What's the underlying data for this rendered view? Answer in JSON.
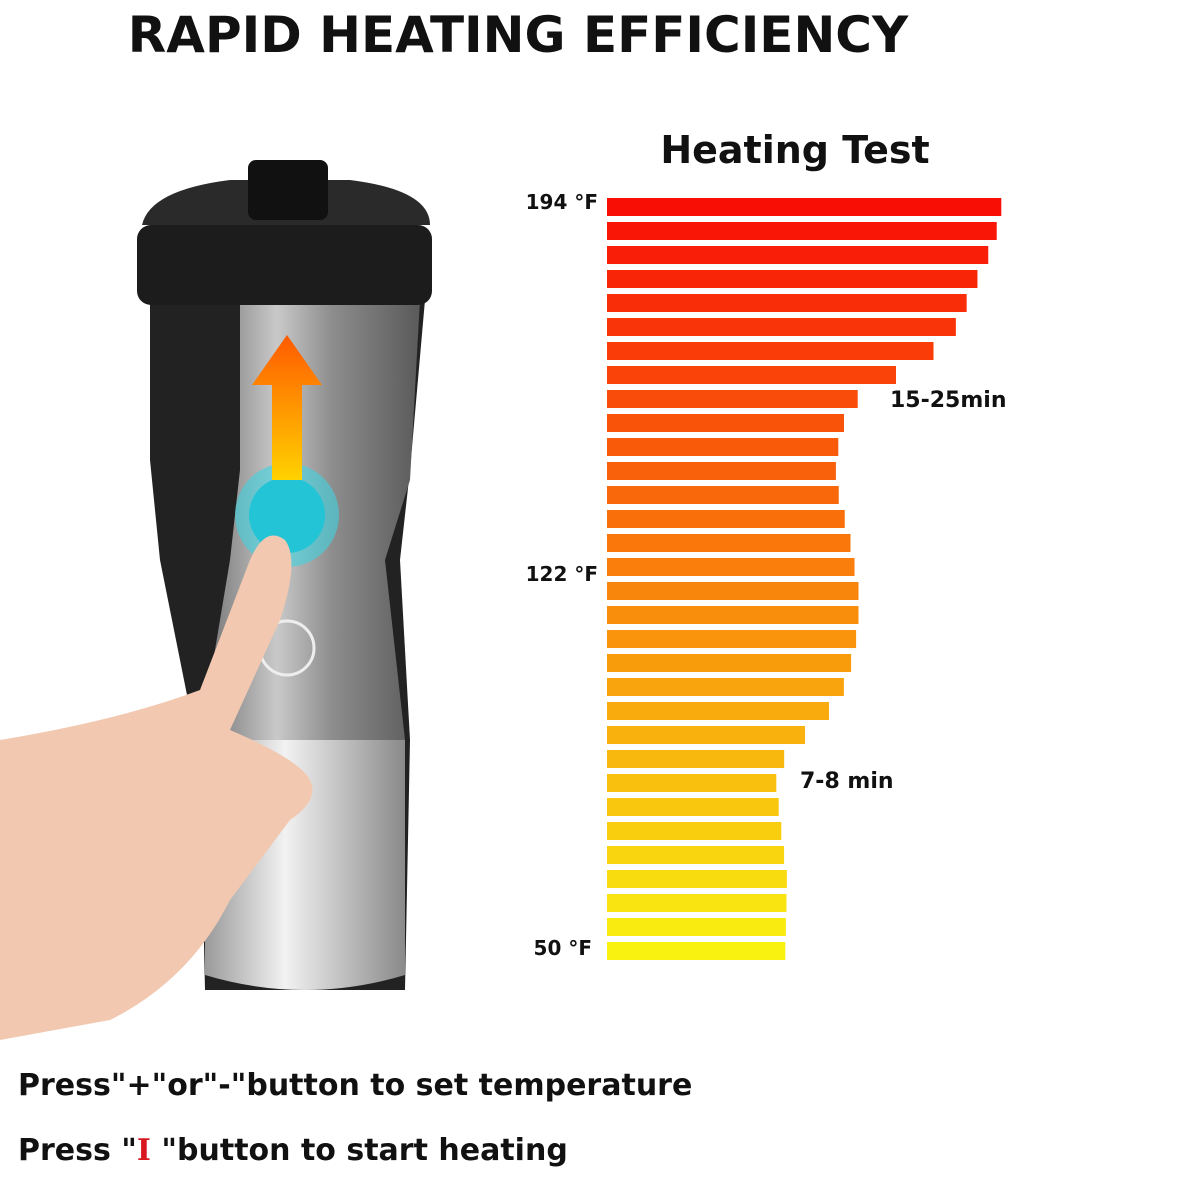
{
  "header": {
    "title": "RAPID HEATING EFFICIENCY"
  },
  "heating_test": {
    "title": "Heating Test",
    "temperature_labels": [
      "194 °F",
      "122 °F",
      "50 °F"
    ],
    "time_labels": [
      "15-25min",
      "7-8 min"
    ]
  },
  "instructions": [
    {
      "parts": [
        "Press\"+\"or\"-\"button to set temperature"
      ]
    },
    {
      "parts": [
        "Press \"",
        "I",
        " \"button to start heating"
      ]
    }
  ]
}
